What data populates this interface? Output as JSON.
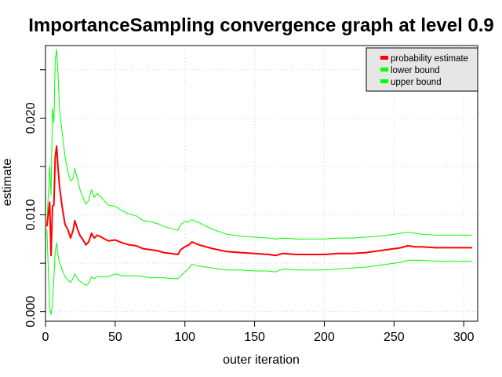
{
  "chart_data": {
    "type": "line",
    "title": "ImportanceSampling convergence graph at level 0.9",
    "xlabel": "outer iteration",
    "ylabel": "estimate",
    "xlim": [
      0,
      310
    ],
    "ylim": [
      -0.001,
      0.0275
    ],
    "x_ticks": [
      0,
      50,
      100,
      150,
      200,
      250,
      300
    ],
    "x_tick_labels": [
      "0",
      "50",
      "100",
      "150",
      "200",
      "250",
      "300"
    ],
    "y_ticks": [
      0.0,
      0.01,
      0.02
    ],
    "y_tick_labels": [
      "0.000",
      "0.010",
      "0.020"
    ],
    "y_minor_ticks": [
      0.005,
      0.015,
      0.025
    ],
    "grid": true,
    "legend_position": "top-right",
    "x": [
      1,
      3,
      4,
      5,
      6,
      7,
      8,
      9,
      10,
      12,
      14,
      16,
      18,
      20,
      21,
      23,
      25,
      27,
      29,
      31,
      33,
      35,
      37,
      40,
      45,
      50,
      55,
      60,
      65,
      70,
      75,
      80,
      85,
      90,
      95,
      97,
      100,
      103,
      105,
      110,
      120,
      130,
      140,
      150,
      160,
      165,
      170,
      180,
      190,
      200,
      210,
      220,
      230,
      240,
      250,
      255,
      260,
      265,
      270,
      280,
      290,
      300,
      306
    ],
    "series": [
      {
        "name": "probability estimate",
        "color": "#ff0000",
        "values": [
          0.0088,
          0.0113,
          0.0058,
          0.0109,
          0.011,
          0.016,
          0.0171,
          0.0148,
          0.013,
          0.0108,
          0.009,
          0.0085,
          0.0076,
          0.0085,
          0.0094,
          0.0085,
          0.0078,
          0.0074,
          0.0069,
          0.0072,
          0.0081,
          0.0076,
          0.0079,
          0.0077,
          0.0073,
          0.0074,
          0.0071,
          0.0069,
          0.0068,
          0.0065,
          0.0064,
          0.0063,
          0.0061,
          0.006,
          0.0059,
          0.0064,
          0.0067,
          0.0069,
          0.0072,
          0.0069,
          0.0065,
          0.0062,
          0.0061,
          0.006,
          0.0059,
          0.0058,
          0.006,
          0.0059,
          0.0059,
          0.0059,
          0.006,
          0.006,
          0.0061,
          0.0063,
          0.0065,
          0.0066,
          0.0068,
          0.0067,
          0.0067,
          0.0066,
          0.0066,
          0.0066,
          0.0066
        ]
      },
      {
        "name": "lower bound",
        "color": "#00ff00",
        "values": [
          0.0085,
          0.0003,
          -0.0003,
          0.0008,
          0.0035,
          0.0062,
          0.0071,
          0.0058,
          0.0051,
          0.0043,
          0.0036,
          0.0033,
          0.003,
          0.0035,
          0.0039,
          0.0034,
          0.0031,
          0.0029,
          0.0027,
          0.0029,
          0.0036,
          0.0034,
          0.0036,
          0.0036,
          0.0036,
          0.0039,
          0.0037,
          0.0037,
          0.0037,
          0.0036,
          0.0035,
          0.0035,
          0.0035,
          0.0034,
          0.0034,
          0.0037,
          0.0041,
          0.0045,
          0.0049,
          0.0047,
          0.0045,
          0.0043,
          0.0043,
          0.0042,
          0.0042,
          0.0041,
          0.0044,
          0.0043,
          0.0043,
          0.0043,
          0.0044,
          0.0045,
          0.0046,
          0.0048,
          0.005,
          0.0051,
          0.0053,
          0.0053,
          0.0053,
          0.0052,
          0.0052,
          0.0052,
          0.0052
        ]
      },
      {
        "name": "upper bound",
        "color": "#00ff00",
        "values": [
          0.0091,
          0.015,
          0.012,
          0.021,
          0.0195,
          0.026,
          0.0271,
          0.0245,
          0.021,
          0.0185,
          0.016,
          0.0145,
          0.0135,
          0.0138,
          0.0148,
          0.0137,
          0.0125,
          0.0118,
          0.0111,
          0.0115,
          0.0126,
          0.0118,
          0.0122,
          0.0118,
          0.011,
          0.0109,
          0.0104,
          0.0101,
          0.0099,
          0.0094,
          0.0093,
          0.0091,
          0.0088,
          0.0086,
          0.0084,
          0.009,
          0.0093,
          0.0093,
          0.0095,
          0.0092,
          0.0085,
          0.008,
          0.0078,
          0.0077,
          0.0076,
          0.0075,
          0.0076,
          0.0075,
          0.0075,
          0.0075,
          0.0076,
          0.0076,
          0.0077,
          0.0078,
          0.008,
          0.0081,
          0.0082,
          0.0081,
          0.008,
          0.0079,
          0.0079,
          0.0079,
          0.0079
        ]
      }
    ]
  }
}
